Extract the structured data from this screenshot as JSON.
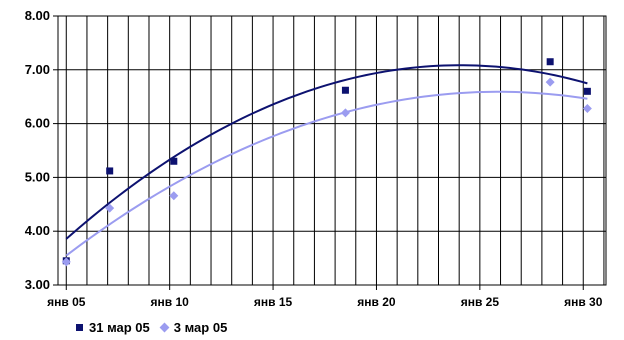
{
  "chart_data": {
    "type": "scatter",
    "title": "",
    "xlabel": "",
    "ylabel": "",
    "x_unit": "days",
    "xlim": [
      4.6,
      31.1
    ],
    "ylim": [
      3.0,
      8.0
    ],
    "x_ticks": [
      {
        "value": 5,
        "label": "янв 05"
      },
      {
        "value": 10,
        "label": "янв 10"
      },
      {
        "value": 15,
        "label": "янв 15"
      },
      {
        "value": 20,
        "label": "янв 20"
      },
      {
        "value": 25,
        "label": "янв 25"
      },
      {
        "value": 30,
        "label": "янв 30"
      }
    ],
    "y_ticks": [
      {
        "value": 3,
        "label": "3.00"
      },
      {
        "value": 4,
        "label": "4.00"
      },
      {
        "value": 5,
        "label": "5.00"
      },
      {
        "value": 6,
        "label": "6.00"
      },
      {
        "value": 7,
        "label": "7.00"
      },
      {
        "value": 8,
        "label": "8.00"
      }
    ],
    "grid_vertical_step": 1,
    "grid_horizontal_step": 1,
    "legend_position": "bottom-left",
    "series": [
      {
        "name": "31 мар 05",
        "marker": "square",
        "color": "#0d1270",
        "trendline": "polynomial-2",
        "points": [
          {
            "x": 5,
            "y": 3.45
          },
          {
            "x": 7.1,
            "y": 5.12
          },
          {
            "x": 10.2,
            "y": 5.3
          },
          {
            "x": 18.5,
            "y": 6.62
          },
          {
            "x": 28.4,
            "y": 7.15
          },
          {
            "x": 30.2,
            "y": 6.6
          }
        ]
      },
      {
        "name": "3 мар 05",
        "marker": "diamond",
        "color": "#9b9cf0",
        "trendline": "polynomial-2",
        "points": [
          {
            "x": 5,
            "y": 3.43
          },
          {
            "x": 7.1,
            "y": 4.43
          },
          {
            "x": 10.2,
            "y": 4.66
          },
          {
            "x": 18.5,
            "y": 6.2
          },
          {
            "x": 28.4,
            "y": 6.77
          },
          {
            "x": 30.2,
            "y": 6.28
          }
        ]
      }
    ]
  }
}
